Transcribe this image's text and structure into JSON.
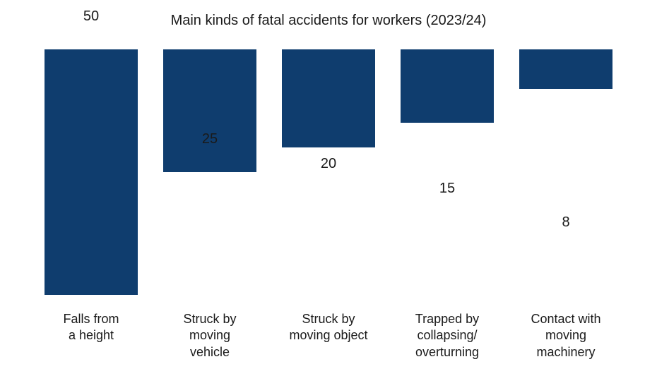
{
  "chart": {
    "type": "bar",
    "title": "Main kinds of fatal accidents for workers (2023/24)",
    "title_fontsize": 20,
    "title_color": "#1a1a1a",
    "background_color": "#ffffff",
    "bar_color": "#0f3d6e",
    "value_label_fontsize": 20,
    "value_label_color": "#1a1a1a",
    "category_label_fontsize": 18,
    "category_label_color": "#1a1a1a",
    "y_max": 50,
    "bar_width_pct": 78,
    "categories": [
      "Falls from\na height",
      "Struck by\nmoving\nvehicle",
      "Struck by\nmoving object",
      "Trapped by\ncollapsing/\noverturning",
      "Contact with\nmoving\nmachinery"
    ],
    "values": [
      50,
      25,
      20,
      15,
      8
    ]
  }
}
